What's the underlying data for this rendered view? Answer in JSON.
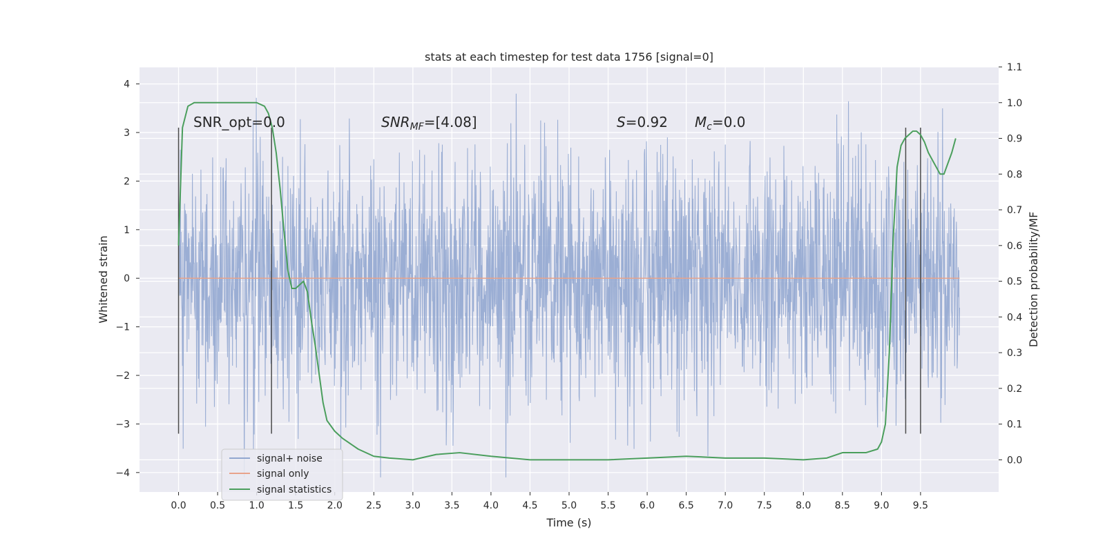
{
  "chart_data": {
    "type": "line",
    "title": "stats at each timestep for test data 1756 [signal=0]",
    "xlabel": "Time (s)",
    "ylabel": "Whitened strain",
    "y2label": "Detection probability/MF",
    "xlim": [
      -0.5,
      10.5
    ],
    "ylim": [
      -4.4,
      4.35
    ],
    "y2lim": [
      -0.09,
      1.1
    ],
    "x_ticks": [
      "0.0",
      "0.5",
      "1.0",
      "1.5",
      "2.0",
      "2.5",
      "3.0",
      "3.5",
      "4.0",
      "4.5",
      "5.0",
      "5.5",
      "6.0",
      "6.5",
      "7.0",
      "7.5",
      "8.0",
      "8.5",
      "9.0",
      "9.5"
    ],
    "y_ticks": [
      "4",
      "3",
      "2",
      "1",
      "0",
      "−1",
      "−2",
      "−3",
      "−4"
    ],
    "y2_ticks": [
      "1.1",
      "1.0",
      "0.9",
      "0.8",
      "0.7",
      "0.6",
      "0.5",
      "0.4",
      "0.3",
      "0.2",
      "0.1",
      "0.0"
    ],
    "grid": true,
    "legend_placement": "lower-left",
    "annotations": {
      "snr_opt": "SNR_opt=0.0",
      "snr_mf_main": "SNR",
      "snr_mf_sub": "MF",
      "snr_mf_val": "=[4.08]",
      "s_main": "S",
      "s_val": "=0.92",
      "mc_main": "M",
      "mc_sub": "c",
      "mc_val": "=0.0"
    },
    "vertical_lines_x": [
      0.0,
      1.19,
      9.31,
      9.5
    ],
    "series": [
      {
        "name": "signal+ noise",
        "color": "#92a7d0",
        "noise_envelope": {
          "t_start": 0.0,
          "t_end": 10.0,
          "typical_abs": 1.8,
          "max": 4.0,
          "min": -4.1
        }
      },
      {
        "name": "signal only",
        "color": "#e8a38a",
        "x": [
          0.0,
          10.0
        ],
        "y": [
          0.0,
          0.0
        ]
      },
      {
        "name": "signal statistics",
        "color": "#4a9e5c",
        "x": [
          0.0,
          0.05,
          0.12,
          0.2,
          0.35,
          0.5,
          0.7,
          0.9,
          1.0,
          1.1,
          1.15,
          1.2,
          1.25,
          1.3,
          1.35,
          1.4,
          1.45,
          1.5,
          1.55,
          1.6,
          1.65,
          1.7,
          1.75,
          1.8,
          1.85,
          1.9,
          2.0,
          2.1,
          2.3,
          2.5,
          2.7,
          3.0,
          3.3,
          3.6,
          4.0,
          4.5,
          5.0,
          5.5,
          6.0,
          6.5,
          7.0,
          7.5,
          8.0,
          8.3,
          8.5,
          8.8,
          8.95,
          9.0,
          9.05,
          9.1,
          9.15,
          9.2,
          9.25,
          9.3,
          9.35,
          9.4,
          9.45,
          9.5,
          9.55,
          9.6,
          9.65,
          9.7,
          9.75,
          9.8,
          9.85,
          9.9,
          9.95
        ],
        "y": [
          0.6,
          0.93,
          0.99,
          1.0,
          1.0,
          1.0,
          1.0,
          1.0,
          1.0,
          0.99,
          0.97,
          0.93,
          0.86,
          0.76,
          0.64,
          0.53,
          0.48,
          0.48,
          0.49,
          0.5,
          0.47,
          0.39,
          0.32,
          0.24,
          0.16,
          0.11,
          0.08,
          0.06,
          0.03,
          0.01,
          0.005,
          0.0,
          0.015,
          0.02,
          0.01,
          0.0,
          0.0,
          0.0,
          0.005,
          0.01,
          0.005,
          0.005,
          0.0,
          0.005,
          0.02,
          0.02,
          0.03,
          0.05,
          0.1,
          0.3,
          0.62,
          0.82,
          0.88,
          0.9,
          0.91,
          0.92,
          0.92,
          0.91,
          0.89,
          0.86,
          0.84,
          0.82,
          0.8,
          0.8,
          0.83,
          0.86,
          0.9
        ]
      }
    ]
  }
}
